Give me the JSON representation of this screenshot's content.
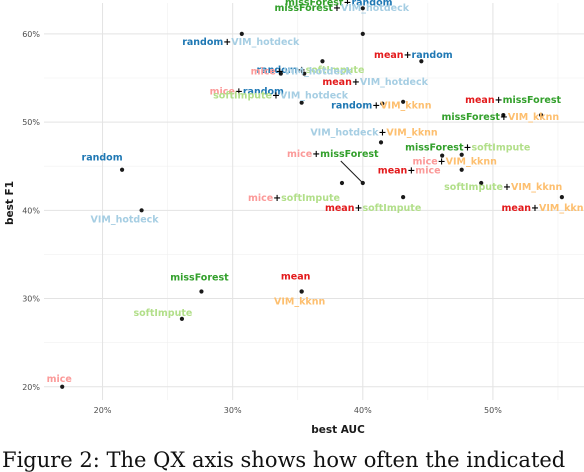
{
  "figure": {
    "caption": "Figure 2: The QX axis shows how often the indicated"
  },
  "chart_data": {
    "type": "scatter",
    "xlabel": "best AUC",
    "ylabel": "best F1",
    "xlim": [
      0.155,
      0.57
    ],
    "ylim": [
      0.185,
      0.635
    ],
    "x_ticks": [
      0.2,
      0.3,
      0.4,
      0.5
    ],
    "x_tick_labels": [
      "20%",
      "30%",
      "40%",
      "50%"
    ],
    "y_ticks": [
      0.2,
      0.3,
      0.4,
      0.5,
      0.6
    ],
    "y_tick_labels": [
      "20%",
      "30%",
      "40%",
      "50%",
      "60%"
    ],
    "grid": true,
    "colors": {
      "missForest": "#33a02c",
      "softImpute": "#b2df8a",
      "mean": "#e31a1c",
      "mice": "#fb9a99",
      "random": "#1f78b4",
      "VIM_hotdeck": "#a6cee3",
      "VIM_kknn": "#fdbf6f",
      "plus": "#000000"
    },
    "points": [
      {
        "id": "missForest+random",
        "parts": [
          "missForest",
          "random"
        ],
        "x": 0.4,
        "y": 0.629
      },
      {
        "id": "missForest+VIM_hotdeck",
        "parts": [
          "missForest",
          "VIM_hotdeck"
        ],
        "x": 0.4,
        "y": 0.6
      },
      {
        "id": "random+VIM_hotdeck",
        "parts": [
          "random",
          "VIM_hotdeck"
        ],
        "x": 0.307,
        "y": 0.6
      },
      {
        "id": "random+softImpute",
        "parts": [
          "random",
          "softImpute"
        ],
        "x": 0.369,
        "y": 0.569
      },
      {
        "id": "mean+random",
        "parts": [
          "mean",
          "random"
        ],
        "x": 0.445,
        "y": 0.569
      },
      {
        "id": "mice+random",
        "parts": [
          "mice",
          "random"
        ],
        "x": 0.337,
        "y": 0.555
      },
      {
        "id": "mice+VIM_hotdeck",
        "parts": [
          "mice",
          "VIM_hotdeck"
        ],
        "x": 0.355,
        "y": 0.555
      },
      {
        "id": "softImpute+VIM_hotdeck",
        "parts": [
          "softImpute",
          "VIM_hotdeck"
        ],
        "x": 0.353,
        "y": 0.522
      },
      {
        "id": "mean+VIM_hotdeck",
        "parts": [
          "mean",
          "VIM_hotdeck"
        ],
        "x": 0.431,
        "y": 0.523
      },
      {
        "id": "random+VIM_kknn",
        "parts": [
          "random",
          "VIM_kknn"
        ],
        "x": 0.415,
        "y": 0.521
      },
      {
        "id": "mean+missForest",
        "parts": [
          "mean",
          "missForest"
        ],
        "x": 0.537,
        "y": 0.508
      },
      {
        "id": "missForest+VIM_kknn",
        "parts": [
          "missForest",
          "VIM_kknn"
        ],
        "x": 0.508,
        "y": 0.508
      },
      {
        "id": "VIM_hotdeck+VIM_kknn",
        "parts": [
          "VIM_hotdeck",
          "VIM_kknn"
        ],
        "x": 0.414,
        "y": 0.477
      },
      {
        "id": "missForest+softImpute",
        "parts": [
          "missForest",
          "softImpute"
        ],
        "x": 0.476,
        "y": 0.463
      },
      {
        "id": "mice+missForest",
        "parts": [
          "mice",
          "missForest"
        ],
        "x": 0.4,
        "y": 0.431
      },
      {
        "id": "mice+VIM_kknn",
        "parts": [
          "mice",
          "VIM_kknn"
        ],
        "x": 0.476,
        "y": 0.446
      },
      {
        "id": "mean+mice",
        "parts": [
          "mean",
          "mice"
        ],
        "x": 0.461,
        "y": 0.462
      },
      {
        "id": "mice+softImpute",
        "parts": [
          "mice",
          "softImpute"
        ],
        "x": 0.384,
        "y": 0.431
      },
      {
        "id": "softImpute+VIM_kknn",
        "parts": [
          "softImpute",
          "VIM_kknn"
        ],
        "x": 0.491,
        "y": 0.431
      },
      {
        "id": "mean+softImpute",
        "parts": [
          "mean",
          "softImpute"
        ],
        "x": 0.431,
        "y": 0.415
      },
      {
        "id": "mean+VIM_kknn",
        "parts": [
          "mean",
          "VIM_kknn"
        ],
        "x": 0.553,
        "y": 0.415
      },
      {
        "id": "random",
        "parts": [
          "random"
        ],
        "x": 0.215,
        "y": 0.446
      },
      {
        "id": "VIM_hotdeck",
        "parts": [
          "VIM_hotdeck"
        ],
        "x": 0.23,
        "y": 0.4
      },
      {
        "id": "missForest",
        "parts": [
          "missForest"
        ],
        "x": 0.276,
        "y": 0.308
      },
      {
        "id": "mean",
        "parts": [
          "mean"
        ],
        "x": 0.353,
        "y": 0.308
      },
      {
        "id": "VIM_kknn",
        "parts": [
          "VIM_kknn"
        ],
        "x": 0.353,
        "y": 0.308
      },
      {
        "id": "softImpute",
        "parts": [
          "softImpute"
        ],
        "x": 0.261,
        "y": 0.277
      },
      {
        "id": "mice",
        "parts": [
          "mice"
        ],
        "x": 0.169,
        "y": 0.2
      }
    ]
  }
}
